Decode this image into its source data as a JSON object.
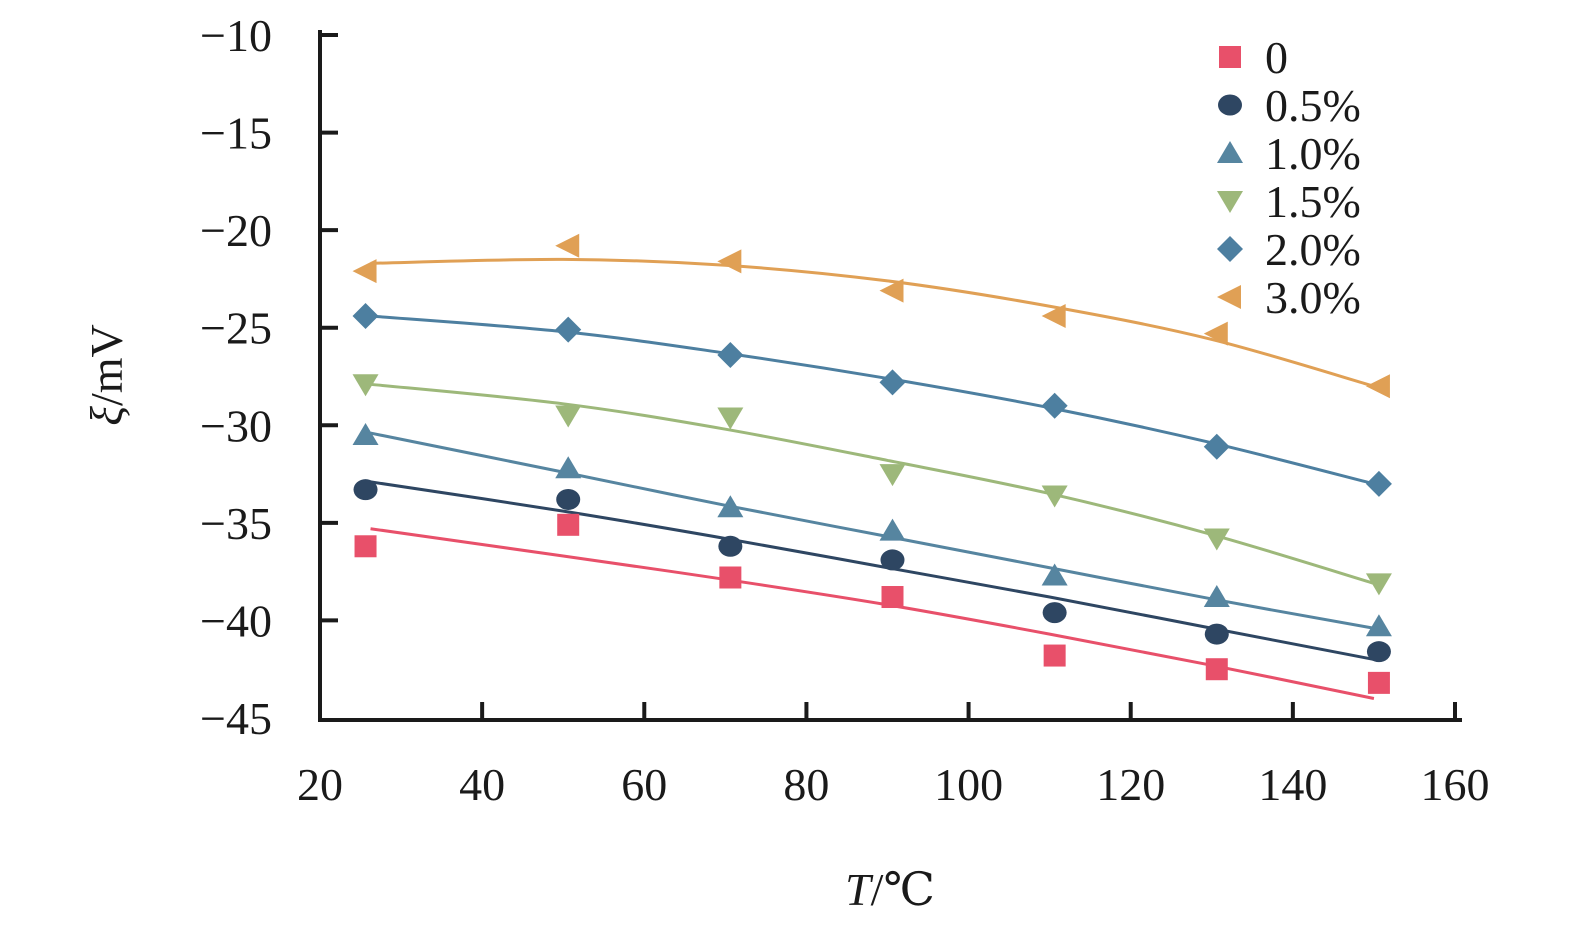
{
  "chart_data": {
    "type": "scatter",
    "title": "",
    "xlabel": {
      "var": "T",
      "unit": "/℃"
    },
    "ylabel": {
      "var": "ξ",
      "unit": "/mV"
    },
    "xlim": [
      20,
      160
    ],
    "ylim": [
      -45,
      -10
    ],
    "xticks": [
      "20",
      "40",
      "60",
      "80",
      "100",
      "120",
      "140",
      "160"
    ],
    "yticks": [
      "−10",
      "−15",
      "−20",
      "−25",
      "−30",
      "−35",
      "−40",
      "−45"
    ],
    "x": [
      25,
      50,
      70,
      90,
      110,
      130,
      150
    ],
    "legend_position": "top-right",
    "grid": false,
    "series": [
      {
        "name": "0",
        "marker": "square",
        "color": "#e8506a",
        "values": [
          -36.2,
          -35.1,
          -37.8,
          -38.8,
          -41.8,
          -42.5,
          -43.2
        ],
        "fit": [
          -35.3,
          -36.7,
          -37.9,
          -39.2,
          -40.7,
          -42.3,
          -44.0
        ]
      },
      {
        "name": "0.5%",
        "marker": "circle",
        "color": "#2e4662",
        "values": [
          -33.3,
          -33.8,
          -36.2,
          -36.9,
          -39.6,
          -40.7,
          -41.6
        ],
        "fit": [
          -32.9,
          -34.4,
          -35.8,
          -37.3,
          -38.8,
          -40.4,
          -42.0
        ]
      },
      {
        "name": "1.0%",
        "marker": "triangle-up",
        "color": "#5685a0",
        "values": [
          -30.5,
          -32.2,
          -34.2,
          -35.4,
          -37.7,
          -38.8,
          -40.3
        ],
        "fit": [
          -30.4,
          -32.4,
          -34.1,
          -35.7,
          -37.3,
          -38.9,
          -40.4
        ]
      },
      {
        "name": "1.5%",
        "marker": "triangle-down",
        "color": "#9db87a",
        "values": [
          -27.9,
          -29.5,
          -29.6,
          -32.5,
          -33.6,
          -35.8,
          -38.1
        ],
        "fit": [
          -27.9,
          -28.9,
          -30.2,
          -31.8,
          -33.5,
          -35.6,
          -38.1
        ]
      },
      {
        "name": "2.0%",
        "marker": "diamond",
        "color": "#4d7fa0",
        "values": [
          -24.4,
          -25.1,
          -26.4,
          -27.8,
          -29.0,
          -31.1,
          -33.0
        ],
        "fit": [
          -24.4,
          -25.2,
          -26.3,
          -27.6,
          -29.1,
          -30.9,
          -33.0
        ]
      },
      {
        "name": "3.0%",
        "marker": "triangle-left",
        "color": "#e0a055",
        "values": [
          -22.1,
          -20.8,
          -21.6,
          -23.1,
          -24.4,
          -25.3,
          -28.0
        ],
        "fit": [
          -21.7,
          -21.5,
          -21.8,
          -22.6,
          -23.9,
          -25.6,
          -28.0
        ]
      }
    ]
  }
}
